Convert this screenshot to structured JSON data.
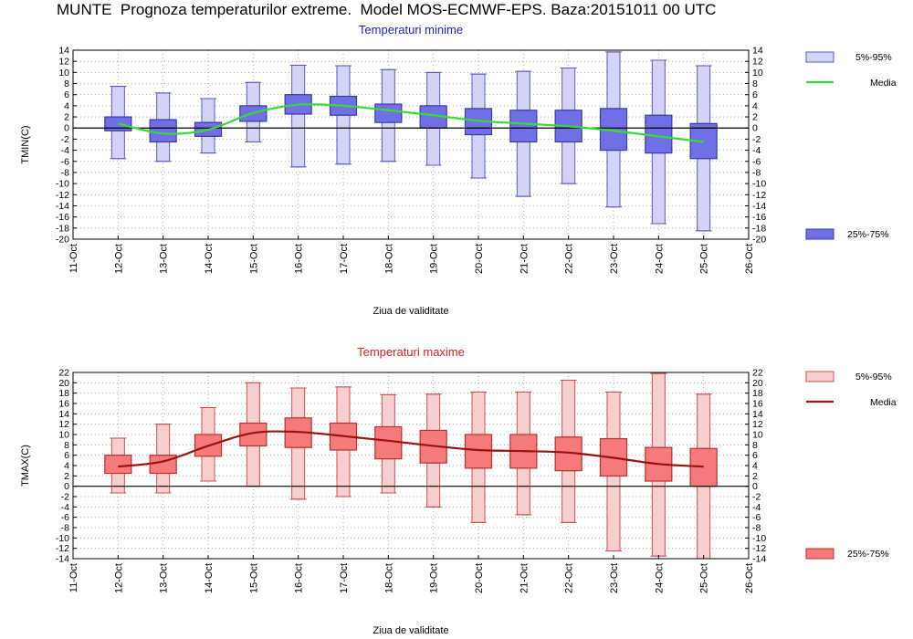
{
  "page_title": "MUNTE  Prognoza temperaturilor extreme.  Model MOS-ECMWF-EPS. Baza:20151011 00 UTC",
  "chart_data": [
    {
      "type": "box",
      "title": "Temperaturi minime",
      "ylabel": "TMIN(C)",
      "xlabel": "Ziua de validitate",
      "ylim": [
        -20,
        14
      ],
      "yticks": [
        -20,
        -18,
        -16,
        -14,
        -12,
        -10,
        -8,
        -6,
        -4,
        -2,
        0,
        2,
        4,
        6,
        8,
        10,
        12,
        14
      ],
      "categories": [
        "11-Oct",
        "12-Oct",
        "13-Oct",
        "14-Oct",
        "15-Oct",
        "16-Oct",
        "17-Oct",
        "18-Oct",
        "19-Oct",
        "20-Oct",
        "21-Oct",
        "22-Oct",
        "23-Oct",
        "24-Oct",
        "25-Oct",
        "26-Oct"
      ],
      "boxes": [
        {
          "day": "12-Oct",
          "p5": -5.5,
          "p95": 7.5,
          "p25": -0.5,
          "p75": 2
        },
        {
          "day": "13-Oct",
          "p5": -6,
          "p95": 6.3,
          "p25": -2.5,
          "p75": 1.5
        },
        {
          "day": "14-Oct",
          "p5": -4.5,
          "p95": 5.3,
          "p25": -1.5,
          "p75": 1
        },
        {
          "day": "15-Oct",
          "p5": -2.5,
          "p95": 8.2,
          "p25": 1.2,
          "p75": 4
        },
        {
          "day": "16-Oct",
          "p5": -7,
          "p95": 11.3,
          "p25": 2.5,
          "p75": 6
        },
        {
          "day": "17-Oct",
          "p5": -6.5,
          "p95": 11.2,
          "p25": 2.3,
          "p75": 5.7
        },
        {
          "day": "18-Oct",
          "p5": -6,
          "p95": 10.5,
          "p25": 1,
          "p75": 4.3
        },
        {
          "day": "19-Oct",
          "p5": -6.7,
          "p95": 10,
          "p25": 0,
          "p75": 4
        },
        {
          "day": "20-Oct",
          "p5": -9,
          "p95": 9.7,
          "p25": -1.2,
          "p75": 3.5
        },
        {
          "day": "21-Oct",
          "p5": -12.3,
          "p95": 10.2,
          "p25": -2.5,
          "p75": 3.2
        },
        {
          "day": "22-Oct",
          "p5": -10,
          "p95": 10.8,
          "p25": -2.5,
          "p75": 3.2
        },
        {
          "day": "23-Oct",
          "p5": -14.2,
          "p95": 13.7,
          "p25": -4,
          "p75": 3.5
        },
        {
          "day": "24-Oct",
          "p5": -17.2,
          "p95": 12.2,
          "p25": -4.5,
          "p75": 2.3
        },
        {
          "day": "25-Oct",
          "p5": -18.5,
          "p95": 11.2,
          "p25": -5.5,
          "p75": 0.8
        }
      ],
      "median_series": {
        "name": "Media",
        "days": [
          "12-Oct",
          "13-Oct",
          "14-Oct",
          "15-Oct",
          "16-Oct",
          "17-Oct",
          "18-Oct",
          "19-Oct",
          "20-Oct",
          "21-Oct",
          "22-Oct",
          "23-Oct",
          "24-Oct",
          "25-Oct"
        ],
        "values": [
          0.8,
          -1,
          -0.3,
          2.7,
          4.2,
          4,
          3.2,
          2.3,
          1.3,
          0.8,
          0.3,
          -0.5,
          -1.5,
          -2.5
        ]
      },
      "legend": {
        "whisker_label": "5%-95%",
        "median_label": "Media",
        "box_label": "25%-75%"
      },
      "colors": {
        "box_fill": "#7070e4",
        "box_edge": "#3a3aa8",
        "whisker_fill": "#d4d4f6",
        "median": "#33dd33",
        "whisker": "#5a5ab8"
      },
      "grid": true,
      "zero_line": true
    },
    {
      "type": "box",
      "title": "Temperaturi maxime",
      "ylabel": "TMAX(C)",
      "xlabel": "Ziua de validitate",
      "ylim": [
        -14,
        22
      ],
      "yticks": [
        -14,
        -12,
        -10,
        -8,
        -6,
        -4,
        -2,
        0,
        2,
        4,
        6,
        8,
        10,
        12,
        14,
        16,
        18,
        20,
        22
      ],
      "categories": [
        "11-Oct",
        "12-Oct",
        "13-Oct",
        "14-Oct",
        "15-Oct",
        "16-Oct",
        "17-Oct",
        "18-Oct",
        "19-Oct",
        "20-Oct",
        "21-Oct",
        "22-Oct",
        "23-Oct",
        "24-Oct",
        "25-Oct",
        "26-Oct"
      ],
      "boxes": [
        {
          "day": "12-Oct",
          "p5": -1.3,
          "p95": 9.3,
          "p25": 2.5,
          "p75": 6
        },
        {
          "day": "13-Oct",
          "p5": -1.3,
          "p95": 12,
          "p25": 2.5,
          "p75": 6
        },
        {
          "day": "14-Oct",
          "p5": 1,
          "p95": 15.2,
          "p25": 5.8,
          "p75": 10
        },
        {
          "day": "15-Oct",
          "p5": 0,
          "p95": 20,
          "p25": 7.8,
          "p75": 12.2
        },
        {
          "day": "16-Oct",
          "p5": -2.5,
          "p95": 19,
          "p25": 7.5,
          "p75": 13.2
        },
        {
          "day": "17-Oct",
          "p5": -2,
          "p95": 19.2,
          "p25": 7,
          "p75": 12.2
        },
        {
          "day": "18-Oct",
          "p5": -1.3,
          "p95": 17.7,
          "p25": 5.3,
          "p75": 11.5
        },
        {
          "day": "19-Oct",
          "p5": -4,
          "p95": 17.8,
          "p25": 4.5,
          "p75": 10.8
        },
        {
          "day": "20-Oct",
          "p5": -7,
          "p95": 18.2,
          "p25": 3.5,
          "p75": 10
        },
        {
          "day": "21-Oct",
          "p5": -5.5,
          "p95": 18.2,
          "p25": 3.5,
          "p75": 10
        },
        {
          "day": "22-Oct",
          "p5": -7,
          "p95": 20.5,
          "p25": 3,
          "p75": 9.5
        },
        {
          "day": "23-Oct",
          "p5": -12.5,
          "p95": 18.2,
          "p25": 2,
          "p75": 9.2
        },
        {
          "day": "24-Oct",
          "p5": -13.5,
          "p95": 21.8,
          "p25": 1,
          "p75": 7.5
        },
        {
          "day": "25-Oct",
          "p5": -14,
          "p95": 17.8,
          "p25": 0,
          "p75": 7.3
        }
      ],
      "median_series": {
        "name": "Media",
        "days": [
          "12-Oct",
          "13-Oct",
          "14-Oct",
          "15-Oct",
          "16-Oct",
          "17-Oct",
          "18-Oct",
          "19-Oct",
          "20-Oct",
          "21-Oct",
          "22-Oct",
          "23-Oct",
          "24-Oct",
          "25-Oct"
        ],
        "values": [
          3.8,
          4.8,
          7.8,
          10.3,
          10.5,
          9.7,
          8.8,
          7.8,
          7,
          6.8,
          6.5,
          5.5,
          4.3,
          3.8
        ]
      },
      "legend": {
        "whisker_label": "5%-95%",
        "median_label": "Media",
        "box_label": "25%-75%"
      },
      "colors": {
        "box_fill": "#f57b7b",
        "box_edge": "#b83030",
        "whisker_fill": "#f8cfcf",
        "median": "#991111",
        "whisker": "#c85050"
      },
      "grid": true,
      "zero_line": true
    }
  ]
}
